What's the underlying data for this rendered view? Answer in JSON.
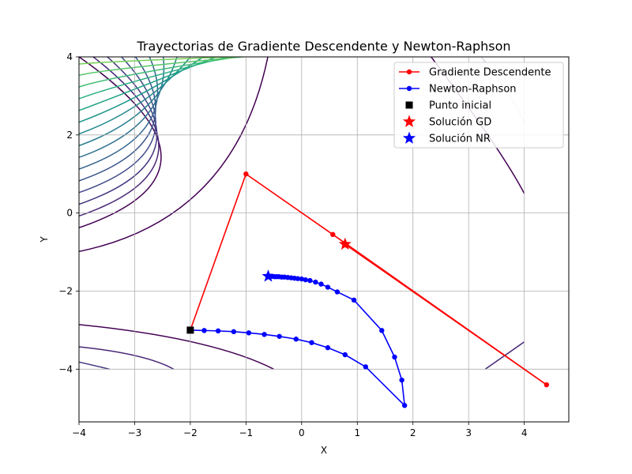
{
  "chart_data": {
    "type": "line",
    "title": "Trayectorias de Gradiente Descendente y Newton-Raphson",
    "xlabel": "X",
    "ylabel": "Y",
    "xlim": [
      -4,
      4.8
    ],
    "ylim": [
      -5.35,
      4
    ],
    "x_ticks": [
      -4,
      -3,
      -2,
      -1,
      0,
      1,
      2,
      3,
      4
    ],
    "x_tick_labels": [
      "−4",
      "−3",
      "−2",
      "−1",
      "0",
      "1",
      "2",
      "3",
      "4"
    ],
    "y_ticks": [
      -4,
      -2,
      0,
      2,
      4
    ],
    "y_tick_labels": [
      "−4",
      "−2",
      "0",
      "2",
      "4"
    ],
    "grid": true,
    "legend_position": "top-right",
    "series": [
      {
        "name": "Gradiente Descendente",
        "kind": "line-markers",
        "color": "#ff0000",
        "x": [
          -2,
          -1,
          0.56,
          4.4,
          0.8
        ],
        "y": [
          -3,
          1,
          -0.55,
          -4.4,
          -0.82
        ]
      },
      {
        "name": "Newton-Raphson",
        "kind": "line-markers",
        "color": "#0000ff",
        "x": [
          -2,
          -1.75,
          -1.5,
          -1.22,
          -0.95,
          -0.67,
          -0.4,
          -0.1,
          0.18,
          0.47,
          0.78,
          1.15,
          1.85,
          1.8,
          1.67,
          1.44,
          0.94,
          0.64,
          0.47,
          0.35,
          0.25,
          0.15,
          0.07,
          0.0,
          -0.07,
          -0.13,
          -0.19,
          -0.25,
          -0.31,
          -0.36,
          -0.41,
          -0.45,
          -0.49,
          -0.53,
          -0.56,
          -0.59
        ],
        "y": [
          -3,
          -3.01,
          -3.02,
          -3.04,
          -3.07,
          -3.11,
          -3.16,
          -3.23,
          -3.32,
          -3.45,
          -3.63,
          -3.94,
          -4.93,
          -4.28,
          -3.69,
          -3.01,
          -2.23,
          -2.02,
          -1.9,
          -1.82,
          -1.77,
          -1.73,
          -1.71,
          -1.69,
          -1.68,
          -1.67,
          -1.66,
          -1.65,
          -1.64,
          -1.64,
          -1.63,
          -1.63,
          -1.63,
          -1.62,
          -1.62,
          -1.62
        ]
      },
      {
        "name": "Punto inicial",
        "kind": "square-marker",
        "color": "#000000",
        "x": [
          -2
        ],
        "y": [
          -3
        ]
      },
      {
        "name": "Solución GD",
        "kind": "star-marker",
        "color": "#ff0000",
        "x": [
          0.78
        ],
        "y": [
          -0.8
        ]
      },
      {
        "name": "Solución NR",
        "kind": "star-marker",
        "color": "#0000ff",
        "x": [
          -0.6
        ],
        "y": [
          -1.62
        ]
      }
    ],
    "contour": {
      "colors": [
        "#440154",
        "#482677",
        "#453781",
        "#3f4788",
        "#39558c",
        "#32648e",
        "#2d718e",
        "#287d8e",
        "#238a8d",
        "#1f968b",
        "#20a386",
        "#29af7f",
        "#3dbc74",
        "#56c667",
        "#75d054",
        "#95d840"
      ]
    }
  }
}
